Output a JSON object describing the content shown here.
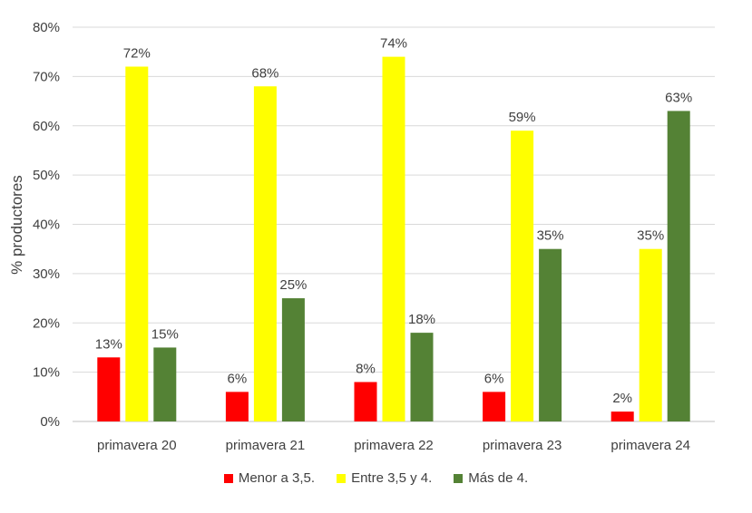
{
  "chart_data": {
    "type": "bar",
    "title": "",
    "xlabel": "",
    "ylabel": "% productores",
    "ylim": [
      0,
      80
    ],
    "yticks": [
      "0%",
      "10%",
      "20%",
      "30%",
      "40%",
      "50%",
      "60%",
      "70%",
      "80%"
    ],
    "categories": [
      "primavera 20",
      "primavera 21",
      "primavera 22",
      "primavera 23",
      "primavera 24"
    ],
    "series": [
      {
        "name": "Menor a 3,5.",
        "color": "#ff0000",
        "values": [
          13,
          6,
          8,
          6,
          2
        ],
        "labels": [
          "13%",
          "6%",
          "8%",
          "6%",
          "2%"
        ]
      },
      {
        "name": "Entre 3,5 y 4.",
        "color": "#ffff00",
        "values": [
          72,
          68,
          74,
          59,
          35
        ],
        "labels": [
          "72%",
          "68%",
          "74%",
          "59%",
          "35%"
        ]
      },
      {
        "name": "Más de 4.",
        "color": "#548235",
        "values": [
          15,
          25,
          18,
          35,
          63
        ],
        "labels": [
          "15%",
          "25%",
          "18%",
          "35%",
          "63%"
        ]
      }
    ],
    "grid": true,
    "legend_position": "bottom"
  }
}
